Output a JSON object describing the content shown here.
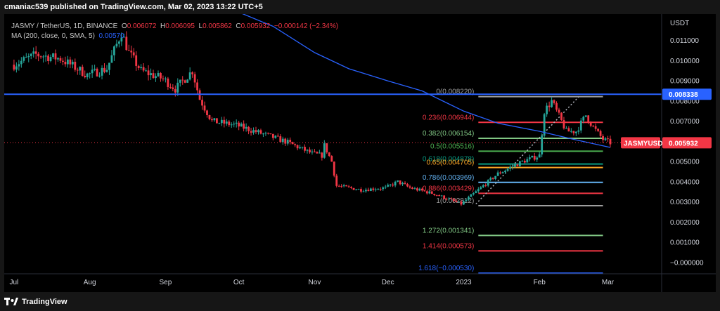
{
  "header": {
    "text": "cmaniac539 published on TradingView.com, Mar 02, 2023 13:22 UTC+5"
  },
  "legend": {
    "symbol": "JASMY / TetherUS, 1D, BINANCE",
    "open_label": "O",
    "open": "0.006072",
    "high_label": "H",
    "high": "0.006095",
    "low_label": "L",
    "low": "0.005862",
    "close_label": "C",
    "close": "0.005932",
    "change": "−0.000142 (−2.34%)",
    "ma_label": "MA (200, close, 0, SMA, 5)",
    "ma_value": "0.00570"
  },
  "footer": {
    "brand": "TradingView"
  },
  "colors": {
    "up": "#26a69a",
    "down": "#f23645",
    "ma": "#2962ff",
    "hline": "#2962ff",
    "background": "#000000",
    "frame": "#161616"
  },
  "chart_data": {
    "type": "candlestick",
    "symbol": "JASMYUSDT",
    "y_axis_title": "USDT",
    "ylim": [
      -0.00056,
      0.01231
    ],
    "y_ticks": [
      "0.011000",
      "0.010000",
      "0.009000",
      "0.008000",
      "0.007000",
      "0.006000",
      "0.005000",
      "0.004000",
      "0.003000",
      "0.002000",
      "0.001000",
      "−0.000000"
    ],
    "x_ticks": [
      "Jul",
      "Aug",
      "Sep",
      "Oct",
      "Nov",
      "Dec",
      "2023",
      "Feb",
      "Mar"
    ],
    "price_series": [
      [
        "2022-07-01",
        0.0098
      ],
      [
        "2022-07-10",
        0.0103
      ],
      [
        "2022-07-20",
        0.0101
      ],
      [
        "2022-07-31",
        0.0093
      ],
      [
        "2022-08-08",
        0.0096
      ],
      [
        "2022-08-14",
        0.0114
      ],
      [
        "2022-08-17",
        0.0104
      ],
      [
        "2022-08-22",
        0.0095
      ],
      [
        "2022-08-31",
        0.0091
      ],
      [
        "2022-09-05",
        0.0086
      ],
      [
        "2022-09-12",
        0.0095
      ],
      [
        "2022-09-15",
        0.0081
      ],
      [
        "2022-09-20",
        0.007
      ],
      [
        "2022-09-30",
        0.0068
      ],
      [
        "2022-10-10",
        0.0064
      ],
      [
        "2022-10-20",
        0.006
      ],
      [
        "2022-10-31",
        0.0054
      ],
      [
        "2022-11-04",
        0.0053
      ],
      [
        "2022-11-05",
        0.0058
      ],
      [
        "2022-11-08",
        0.005
      ],
      [
        "2022-11-10",
        0.0038
      ],
      [
        "2022-11-20",
        0.0036
      ],
      [
        "2022-11-30",
        0.0037
      ],
      [
        "2022-12-05",
        0.004
      ],
      [
        "2022-12-10",
        0.0037
      ],
      [
        "2022-12-20",
        0.0034
      ],
      [
        "2022-12-31",
        0.0029
      ],
      [
        "2023-01-05",
        0.0034
      ],
      [
        "2023-01-15",
        0.0044
      ],
      [
        "2023-01-25",
        0.005
      ],
      [
        "2023-02-01",
        0.0053
      ],
      [
        "2023-02-03",
        0.0075
      ],
      [
        "2023-02-06",
        0.008
      ],
      [
        "2023-02-12",
        0.0065
      ],
      [
        "2023-02-16",
        0.0065
      ],
      [
        "2023-02-20",
        0.0073
      ],
      [
        "2023-02-23",
        0.0067
      ],
      [
        "2023-02-27",
        0.0061
      ],
      [
        "2023-03-02",
        0.005932
      ]
    ],
    "ma200_series": [
      [
        "2022-09-29",
        0.0125
      ],
      [
        "2022-10-15",
        0.0117
      ],
      [
        "2022-11-01",
        0.0104
      ],
      [
        "2022-11-15",
        0.0096
      ],
      [
        "2022-12-01",
        0.009
      ],
      [
        "2022-12-15",
        0.0085
      ],
      [
        "2023-01-01",
        0.0075
      ],
      [
        "2023-01-15",
        0.0069
      ],
      [
        "2023-02-01",
        0.0065
      ],
      [
        "2023-02-15",
        0.0061
      ],
      [
        "2023-03-02",
        0.0057
      ]
    ],
    "horizontal_line": {
      "value": 0.008338,
      "label": "0.008338"
    },
    "last_price": {
      "symbol_label": "JASMYUSDT",
      "value": 0.005932,
      "label": "0.005932"
    },
    "fib_retracement": {
      "date_start": "2023-01-07",
      "date_end": "2023-02-27",
      "trend_from": [
        "2023-01-06",
        0.0029
      ],
      "trend_to": [
        "2023-02-17",
        0.0082
      ],
      "levels": [
        {
          "label": "0(0.008220)",
          "value": 0.00822,
          "color": "#9e9e9e"
        },
        {
          "label": "0.236(0.006944)",
          "value": 0.006944,
          "color": "#f23645"
        },
        {
          "label": "0.382(0.006154)",
          "value": 0.006154,
          "color": "#81c784"
        },
        {
          "label": "0.5(0.005516)",
          "value": 0.005516,
          "color": "#4caf50"
        },
        {
          "label": "0.618(0.004878)",
          "value": 0.004878,
          "color": "#089981"
        },
        {
          "label": "0.65(0.004705)",
          "value": 0.004705,
          "color": "#ffa726"
        },
        {
          "label": "0.786(0.003969)",
          "value": 0.003969,
          "color": "#64b5f6"
        },
        {
          "label": "0.886(0.003429)",
          "value": 0.003429,
          "color": "#f23645"
        },
        {
          "label": "1(0.002812)",
          "value": 0.002812,
          "color": "#9e9e9e"
        },
        {
          "label": "1.272(0.001341)",
          "value": 0.001341,
          "color": "#81c784"
        },
        {
          "label": "1.414(0.000573)",
          "value": 0.000573,
          "color": "#f23645"
        },
        {
          "label": "1.618(−0.000530)",
          "value": -0.00053,
          "color": "#2962ff"
        }
      ]
    }
  }
}
